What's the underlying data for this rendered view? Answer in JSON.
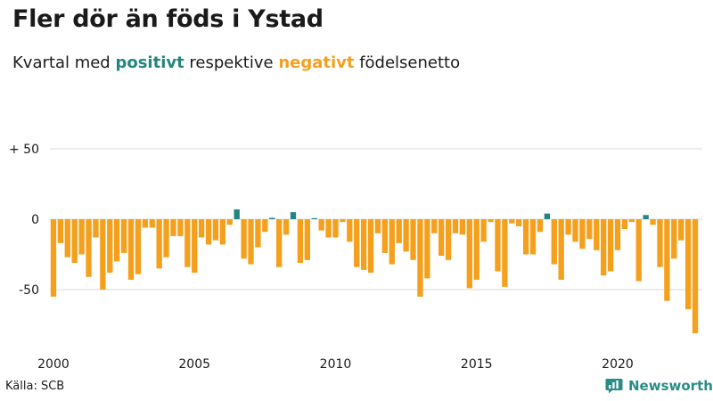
{
  "title": "Fler dör än föds i Ystad",
  "subtitle": {
    "prefix": "Kvartal med ",
    "positive_word": "positivt",
    "middle": " respektive ",
    "negative_word": "negativt",
    "suffix": " födelsenetto"
  },
  "source": "Källa: SCB",
  "brand": {
    "name": "Newsworthy",
    "logo_icon": "bar-chart-speech-bubble-icon"
  },
  "colors": {
    "positive": "#23867f",
    "negative": "#f5a01d",
    "grid": "#d9d9d9",
    "text": "#1a1a1a"
  },
  "chart_data": {
    "type": "bar",
    "x_start": "2000 Q1",
    "x_end": "2022 Q4",
    "ylim": [
      -85,
      55
    ],
    "y_ticks": [
      50,
      0,
      -50
    ],
    "y_tick_labels": [
      "+ 50",
      "0",
      "-50"
    ],
    "x_ticks": [
      2000,
      2005,
      2010,
      2015,
      2020
    ],
    "x_tick_labels": [
      "2000",
      "2005",
      "2010",
      "2015",
      "2020"
    ],
    "grid": "horizontal",
    "title": "",
    "xlabel": "",
    "ylabel": "",
    "values": [
      -55,
      -17,
      -27,
      -31,
      -25,
      -41,
      -13,
      -50,
      -38,
      -30,
      -24,
      -43,
      -39,
      -6,
      -6,
      -35,
      -27,
      -12,
      -12,
      -34,
      -38,
      -13,
      -18,
      -15,
      -18,
      -4,
      7,
      -28,
      -32,
      -20,
      -9,
      1,
      -34,
      -11,
      5,
      -31,
      -29,
      0,
      -8,
      -13,
      -13,
      -2,
      -16,
      -34,
      -36,
      -38,
      -10,
      -24,
      -32,
      -17,
      -23,
      -29,
      -55,
      -42,
      -10,
      -26,
      -29,
      -10,
      -11,
      -49,
      -43,
      -16,
      -2,
      -37,
      -48,
      -3,
      -5,
      -25,
      -25,
      -9,
      4,
      -32,
      -43,
      -11,
      -16,
      -21,
      -14,
      -22,
      -40,
      -37,
      -22,
      -7,
      -2,
      -44,
      3,
      -4,
      -34,
      -58,
      -28,
      -15,
      -64,
      -81
    ]
  }
}
